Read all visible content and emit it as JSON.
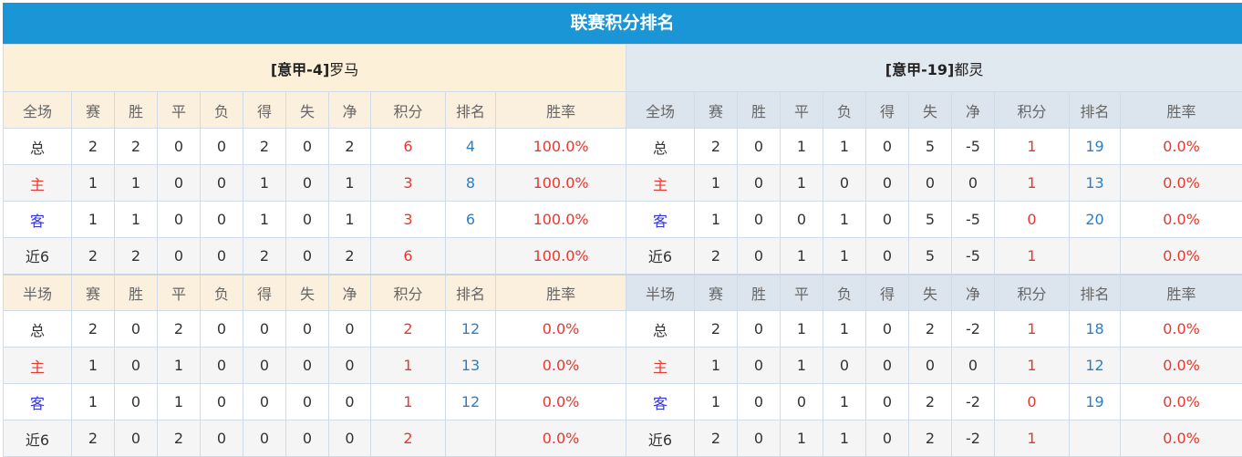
{
  "title": "联赛积分排名",
  "columns_full": [
    "全场",
    "赛",
    "胜",
    "平",
    "负",
    "得",
    "失",
    "净",
    "积分",
    "排名",
    "胜率"
  ],
  "columns_half": [
    "半场",
    "赛",
    "胜",
    "平",
    "负",
    "得",
    "失",
    "净",
    "积分",
    "排名",
    "胜率"
  ],
  "teams": [
    {
      "name_prefix": "[意甲-4]",
      "name": "罗马",
      "full": [
        [
          "总",
          "2",
          "2",
          "0",
          "0",
          "2",
          "0",
          "2",
          "6",
          "4",
          "100.0%"
        ],
        [
          "主",
          "1",
          "1",
          "0",
          "0",
          "1",
          "0",
          "1",
          "3",
          "8",
          "100.0%"
        ],
        [
          "客",
          "1",
          "1",
          "0",
          "0",
          "1",
          "0",
          "1",
          "3",
          "6",
          "100.0%"
        ],
        [
          "近6",
          "2",
          "2",
          "0",
          "0",
          "2",
          "0",
          "2",
          "6",
          "",
          "100.0%"
        ]
      ],
      "half": [
        [
          "总",
          "2",
          "0",
          "2",
          "0",
          "0",
          "0",
          "0",
          "2",
          "12",
          "0.0%"
        ],
        [
          "主",
          "1",
          "0",
          "1",
          "0",
          "0",
          "0",
          "0",
          "1",
          "13",
          "0.0%"
        ],
        [
          "客",
          "1",
          "0",
          "1",
          "0",
          "0",
          "0",
          "0",
          "1",
          "12",
          "0.0%"
        ],
        [
          "近6",
          "2",
          "0",
          "2",
          "0",
          "0",
          "0",
          "0",
          "2",
          "",
          "0.0%"
        ]
      ]
    },
    {
      "name_prefix": "[意甲-19]",
      "name": "都灵",
      "full": [
        [
          "总",
          "2",
          "0",
          "1",
          "1",
          "0",
          "5",
          "-5",
          "1",
          "19",
          "0.0%"
        ],
        [
          "主",
          "1",
          "0",
          "1",
          "0",
          "0",
          "0",
          "0",
          "1",
          "13",
          "0.0%"
        ],
        [
          "客",
          "1",
          "0",
          "0",
          "1",
          "0",
          "5",
          "-5",
          "0",
          "20",
          "0.0%"
        ],
        [
          "近6",
          "2",
          "0",
          "1",
          "1",
          "0",
          "5",
          "-5",
          "1",
          "",
          "0.0%"
        ]
      ],
      "half": [
        [
          "总",
          "2",
          "0",
          "1",
          "1",
          "0",
          "2",
          "-2",
          "1",
          "18",
          "0.0%"
        ],
        [
          "主",
          "1",
          "0",
          "1",
          "0",
          "0",
          "0",
          "0",
          "1",
          "12",
          "0.0%"
        ],
        [
          "客",
          "1",
          "0",
          "0",
          "1",
          "0",
          "2",
          "-2",
          "0",
          "19",
          "0.0%"
        ],
        [
          "近6",
          "2",
          "0",
          "1",
          "1",
          "0",
          "2",
          "-2",
          "1",
          "",
          "0.0%"
        ]
      ]
    }
  ],
  "colors": {
    "title_bar": "#1a95d6",
    "points": "#e8382e",
    "rank": "#2a7fc6",
    "home": "#e8382e",
    "away": "#3333dd"
  }
}
